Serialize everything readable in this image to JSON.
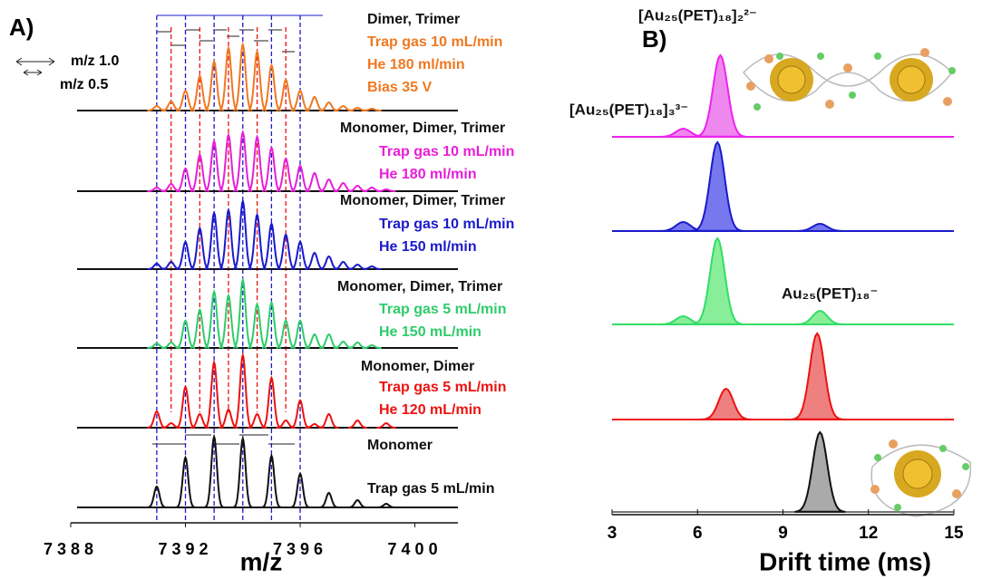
{
  "chart_data": [
    {
      "type": "spectrum",
      "panel_label": "A)",
      "xlabel": "m/z",
      "xlim": [
        7388,
        7401.5
      ],
      "xticks": [
        7388,
        7392,
        7396,
        7400
      ],
      "scale_labels": [
        "m/z 1.0",
        "m/z 0.5"
      ],
      "reference_lines": [
        {
          "color": "#1a1acc",
          "x": [
            7391,
            7392,
            7393,
            7394,
            7395,
            7396
          ]
        },
        {
          "color": "#ee1111",
          "x": [
            7391.5,
            7392.5,
            7393.5,
            7394.5,
            7395.5
          ]
        }
      ],
      "series": [
        {
          "name": "Dimer, Trimer",
          "color": "#f07820",
          "conditions": [
            "Trap  gas 10 mL/min",
            "He 180 ml/min",
            "Bias 35 V"
          ],
          "x": [
            7391,
            7391.5,
            7392,
            7392.5,
            7393,
            7393.5,
            7394,
            7394.5,
            7395,
            7395.5,
            7396,
            7396.5,
            7397,
            7397.5,
            7398,
            7398.5
          ],
          "values": [
            5,
            10,
            22,
            38,
            54,
            69,
            73,
            65,
            50,
            34,
            22,
            15,
            9,
            5,
            3,
            2
          ]
        },
        {
          "name": "Monomer, Dimer, Trimer",
          "color": "#e81ed8",
          "conditions": [
            "Trap gas 10 mL/min",
            "He 180 ml/min"
          ],
          "x": [
            7391,
            7391.5,
            7392,
            7392.5,
            7393,
            7393.5,
            7394,
            7394.5,
            7395,
            7395.5,
            7396,
            7396.5,
            7397,
            7397.5,
            7398,
            7398.5,
            7399
          ],
          "values": [
            4,
            8,
            25,
            40,
            55,
            62,
            65,
            60,
            48,
            36,
            28,
            20,
            13,
            9,
            6,
            4,
            2
          ]
        },
        {
          "name": "Monomer, Dimer, Trimer",
          "color": "#1a1acc",
          "conditions": [
            "Trap gas 10 mL/min",
            "He 150 ml/min"
          ],
          "x": [
            7391,
            7391.5,
            7392,
            7392.5,
            7393,
            7393.5,
            7394,
            7394.5,
            7395,
            7395.5,
            7396,
            7396.5,
            7397,
            7397.5,
            7398,
            7398.5
          ],
          "values": [
            6,
            8,
            30,
            45,
            62,
            65,
            75,
            60,
            50,
            38,
            30,
            18,
            14,
            8,
            5,
            3
          ]
        },
        {
          "name": "Monomer, Dimer, Trimer",
          "color": "#2ecc6a",
          "conditions": [
            "Trap gas 5 mL/min",
            "He 150 mL/min"
          ],
          "x": [
            7391,
            7391.5,
            7392,
            7392.5,
            7393,
            7393.5,
            7394,
            7394.5,
            7395,
            7395.5,
            7396,
            7396.5,
            7397,
            7397.5,
            7398,
            7398.5
          ],
          "values": [
            5,
            6,
            30,
            42,
            62,
            58,
            75,
            48,
            50,
            30,
            30,
            15,
            15,
            7,
            6,
            3
          ]
        },
        {
          "name": "Monomer, Dimer",
          "color": "#ee1111",
          "conditions": [
            "Trap gas 5 mL/min",
            "He 120 mL/min"
          ],
          "x": [
            7391,
            7391.5,
            7392,
            7392.5,
            7393,
            7393.5,
            7394,
            7394.5,
            7395,
            7395.5,
            7396,
            7396.5,
            7397,
            7398,
            7399
          ],
          "values": [
            18,
            5,
            45,
            15,
            72,
            20,
            80,
            15,
            55,
            8,
            30,
            4,
            15,
            8,
            5
          ]
        },
        {
          "name": "Monomer",
          "color": "#111111",
          "conditions": [
            "Trap gas 5 mL/min"
          ],
          "x": [
            7391,
            7392,
            7393,
            7394,
            7395,
            7396,
            7397,
            7398,
            7399
          ],
          "values": [
            23,
            55,
            78,
            76,
            57,
            37,
            16,
            8,
            4
          ]
        }
      ]
    },
    {
      "type": "drift",
      "panel_label": "B)",
      "xlabel": "Drift time (ms)",
      "xlim": [
        3,
        15
      ],
      "xticks": [
        3,
        6,
        9,
        12,
        15
      ],
      "annotations": [
        "[Au₂₅(PET)₁₈]₂²⁻",
        "[Au₂₅(PET)₁₈]₃³⁻",
        "Au₂₅(PET)₁₈⁻"
      ],
      "series": [
        {
          "color": "#ee22ee",
          "x": [
            5.5,
            6.8
          ],
          "values": [
            9,
            90
          ]
        },
        {
          "color": "#1a1acc",
          "x": [
            5.5,
            6.7,
            10.3
          ],
          "values": [
            10,
            98,
            8
          ]
        },
        {
          "color": "#33dd66",
          "x": [
            5.5,
            6.7,
            10.3
          ],
          "values": [
            9,
            95,
            15
          ]
        },
        {
          "color": "#ee1111",
          "x": [
            7.0,
            10.2
          ],
          "values": [
            34,
            95
          ]
        },
        {
          "color": "#111111",
          "x": [
            10.3
          ],
          "values": [
            88
          ]
        }
      ]
    }
  ]
}
